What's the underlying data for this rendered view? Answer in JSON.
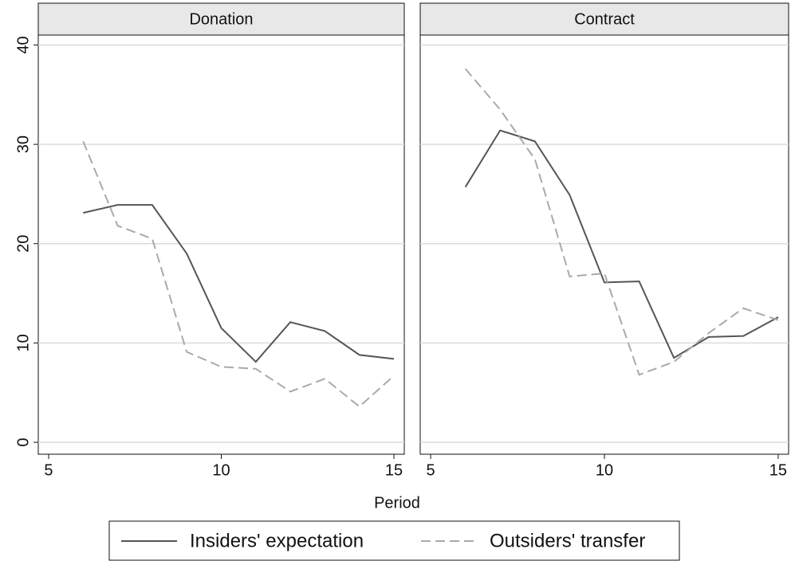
{
  "chart_data": {
    "type": "line",
    "xlabel": "Period",
    "x": [
      6,
      7,
      8,
      9,
      10,
      11,
      12,
      13,
      14,
      15
    ],
    "xlim": [
      4.7,
      15.3
    ],
    "xticks": [
      5,
      10,
      15
    ],
    "ylim": [
      -1.2,
      41
    ],
    "yticks": [
      0,
      10,
      20,
      30,
      40
    ],
    "grid": true,
    "legend": "bottom",
    "series": [
      {
        "name": "Insiders' expectation",
        "color": "#555555",
        "dash": false
      },
      {
        "name": "Outsiders' transfer",
        "color": "#aaaaaa",
        "dash": true
      }
    ],
    "panels": [
      {
        "title": "Donation",
        "values": [
          [
            23.1,
            23.9,
            23.9,
            19.0,
            11.5,
            8.1,
            12.1,
            11.2,
            8.8,
            8.4
          ],
          [
            30.3,
            21.8,
            20.5,
            9.1,
            7.6,
            7.4,
            5.1,
            6.4,
            3.6,
            6.7
          ]
        ]
      },
      {
        "title": "Contract",
        "values": [
          [
            25.7,
            31.4,
            30.3,
            24.9,
            16.1,
            16.2,
            8.5,
            10.6,
            10.7,
            12.6
          ],
          [
            37.6,
            33.5,
            28.5,
            16.7,
            17.0,
            6.8,
            8.1,
            11.0,
            13.5,
            12.3
          ]
        ]
      }
    ]
  }
}
